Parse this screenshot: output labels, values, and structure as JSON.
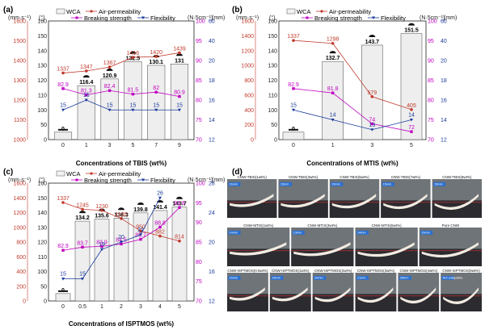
{
  "legend": {
    "wca": "WCA",
    "air": "Air-permeability",
    "breaking": "Breaking strength",
    "flex": "Flexibility"
  },
  "units": {
    "air": "(mm·s⁻¹)",
    "wca": "(°)",
    "strength": "(N·5cm⁻¹)",
    "flex": "(mm)"
  },
  "chart_data": [
    {
      "panel": "(a)",
      "type": "bar",
      "xlabel": "Concentrations of TBIS (wt%)",
      "categories": [
        "0",
        "1",
        "3",
        "5",
        "7",
        "9"
      ],
      "series": [
        {
          "name": "WCA",
          "values": [
            0,
            116.4,
            120.9,
            132.5,
            130.1,
            131
          ]
        },
        {
          "name": "Air-permeability",
          "values": [
            1337,
            1347,
            1367,
            1416,
            1420,
            1439
          ]
        },
        {
          "name": "Breaking strength",
          "values": [
            82.9,
            81.3,
            82.4,
            81.5,
            82,
            80.9
          ]
        },
        {
          "name": "Flexibility",
          "values": [
            15,
            16,
            15,
            15,
            15,
            15
          ]
        }
      ],
      "air_ticks": [
        "1000",
        "1100",
        "1200",
        "1300",
        "1400",
        "1500",
        "1600"
      ],
      "wca_ticks": [
        "0",
        "50",
        "100",
        "110",
        "120",
        "130",
        "140",
        "150",
        "160"
      ],
      "str_ticks": [
        "70",
        "75",
        "80",
        "85",
        "90",
        "95",
        "100"
      ],
      "flex_ticks": [
        "12",
        "14",
        "16",
        "18",
        "20",
        "40",
        "60"
      ]
    },
    {
      "panel": "(b)",
      "type": "bar",
      "xlabel": "Concentrations of MTIS (wt%)",
      "categories": [
        "0",
        "1",
        "3",
        "5"
      ],
      "series": [
        {
          "name": "WCA",
          "values": [
            0,
            132.7,
            143.7,
            151.5
          ]
        },
        {
          "name": "Air-permeability",
          "values": [
            1337,
            1298,
            579,
            405
          ]
        },
        {
          "name": "Breaking strength",
          "values": [
            82.9,
            81.8,
            74,
            72
          ]
        },
        {
          "name": "Flexibility",
          "values": [
            15,
            14,
            13,
            14
          ]
        }
      ],
      "air_ticks": [
        "0",
        "200",
        "400",
        "600",
        "800",
        "1000",
        "1200",
        "1400",
        "1600"
      ],
      "wca_ticks": [
        "0",
        "50",
        "100",
        "110",
        "120",
        "130",
        "140",
        "150",
        "160"
      ],
      "str_ticks": [
        "70",
        "75",
        "80",
        "85",
        "90",
        "95",
        "100"
      ],
      "flex_ticks": [
        "12",
        "14",
        "16",
        "18",
        "20",
        "40",
        "60"
      ]
    },
    {
      "panel": "(c)",
      "type": "bar",
      "xlabel": "Concentrations of ISPTMOS (wt%)",
      "categories": [
        "0",
        "0.5",
        "1",
        "2",
        "3",
        "4",
        "5"
      ],
      "series": [
        {
          "name": "WCA",
          "values": [
            0,
            134.2,
            135.6,
            136.3,
            139.8,
            141.4,
            143.7
          ]
        },
        {
          "name": "Air-permeability",
          "values": [
            1337,
            1245,
            1230,
            1120,
            950,
            882,
            814
          ]
        },
        {
          "name": "Breaking strength",
          "values": [
            82.9,
            83.7,
            83.9,
            84.5,
            85.7,
            88.8,
            93.8
          ]
        },
        {
          "name": "Flexibility",
          "values": [
            15,
            15,
            19,
            20,
            21,
            26,
            null
          ]
        }
      ],
      "air_ticks": [
        "0",
        "200",
        "400",
        "600",
        "800",
        "1000",
        "1200",
        "1400",
        "1600"
      ],
      "wca_ticks": [
        "0",
        "50",
        "100",
        "110",
        "120",
        "130",
        "140",
        "150",
        "160"
      ],
      "str_ticks": [
        "70",
        "75",
        "80",
        "85",
        "90",
        "95",
        "100"
      ],
      "flex_ticks": [
        "12",
        "16",
        "20",
        "24",
        "28"
      ]
    }
  ],
  "photos": {
    "panel": "(d)",
    "rows": [
      [
        {
          "caption": "CNW-TBIS(1wt%)",
          "time": "16mm"
        },
        {
          "caption": "CNW-TBIS(3wt%)",
          "time": "15mm"
        },
        {
          "caption": "CNW-TBIS(5wt%)",
          "time": "15mm"
        },
        {
          "caption": "CNW-TBIS(7wt%)",
          "time": "15mm"
        },
        {
          "caption": "CNW-TBIS(9wt%)",
          "time": "15mm"
        }
      ],
      [
        {
          "caption": "CNW-MTIS(1wt%)",
          "time": "14mm"
        },
        {
          "caption": "CNW-MTIS(3wt%)",
          "time": "13mm"
        },
        {
          "caption": "CNW-MTIS(5wt%)",
          "time": "14mm"
        },
        {
          "caption": "Pure CNW",
          "time": "15mm"
        }
      ],
      [
        {
          "caption": "CNW-ISPTMOS(0.5wt%)",
          "time": "15mm"
        },
        {
          "caption": "CNW-ISPTMOS(1wt%)",
          "time": "19mm"
        },
        {
          "caption": "CNW-ISPTMOS(2wt%)",
          "time": "20mm"
        },
        {
          "caption": "CNW-ISPTMOS(3wt%)",
          "time": "21mm"
        },
        {
          "caption": "CNW-ISPTMOS(4wt%)",
          "time": "26mm"
        },
        {
          "caption": "CNW-ISPTMOS(5wt%)",
          "time": "Not collapsible"
        }
      ]
    ]
  },
  "colors": {
    "air": "#c0392b",
    "strength": "#c000c0",
    "flex": "#1a3a9a",
    "bar_fill": "#eeeeee"
  }
}
